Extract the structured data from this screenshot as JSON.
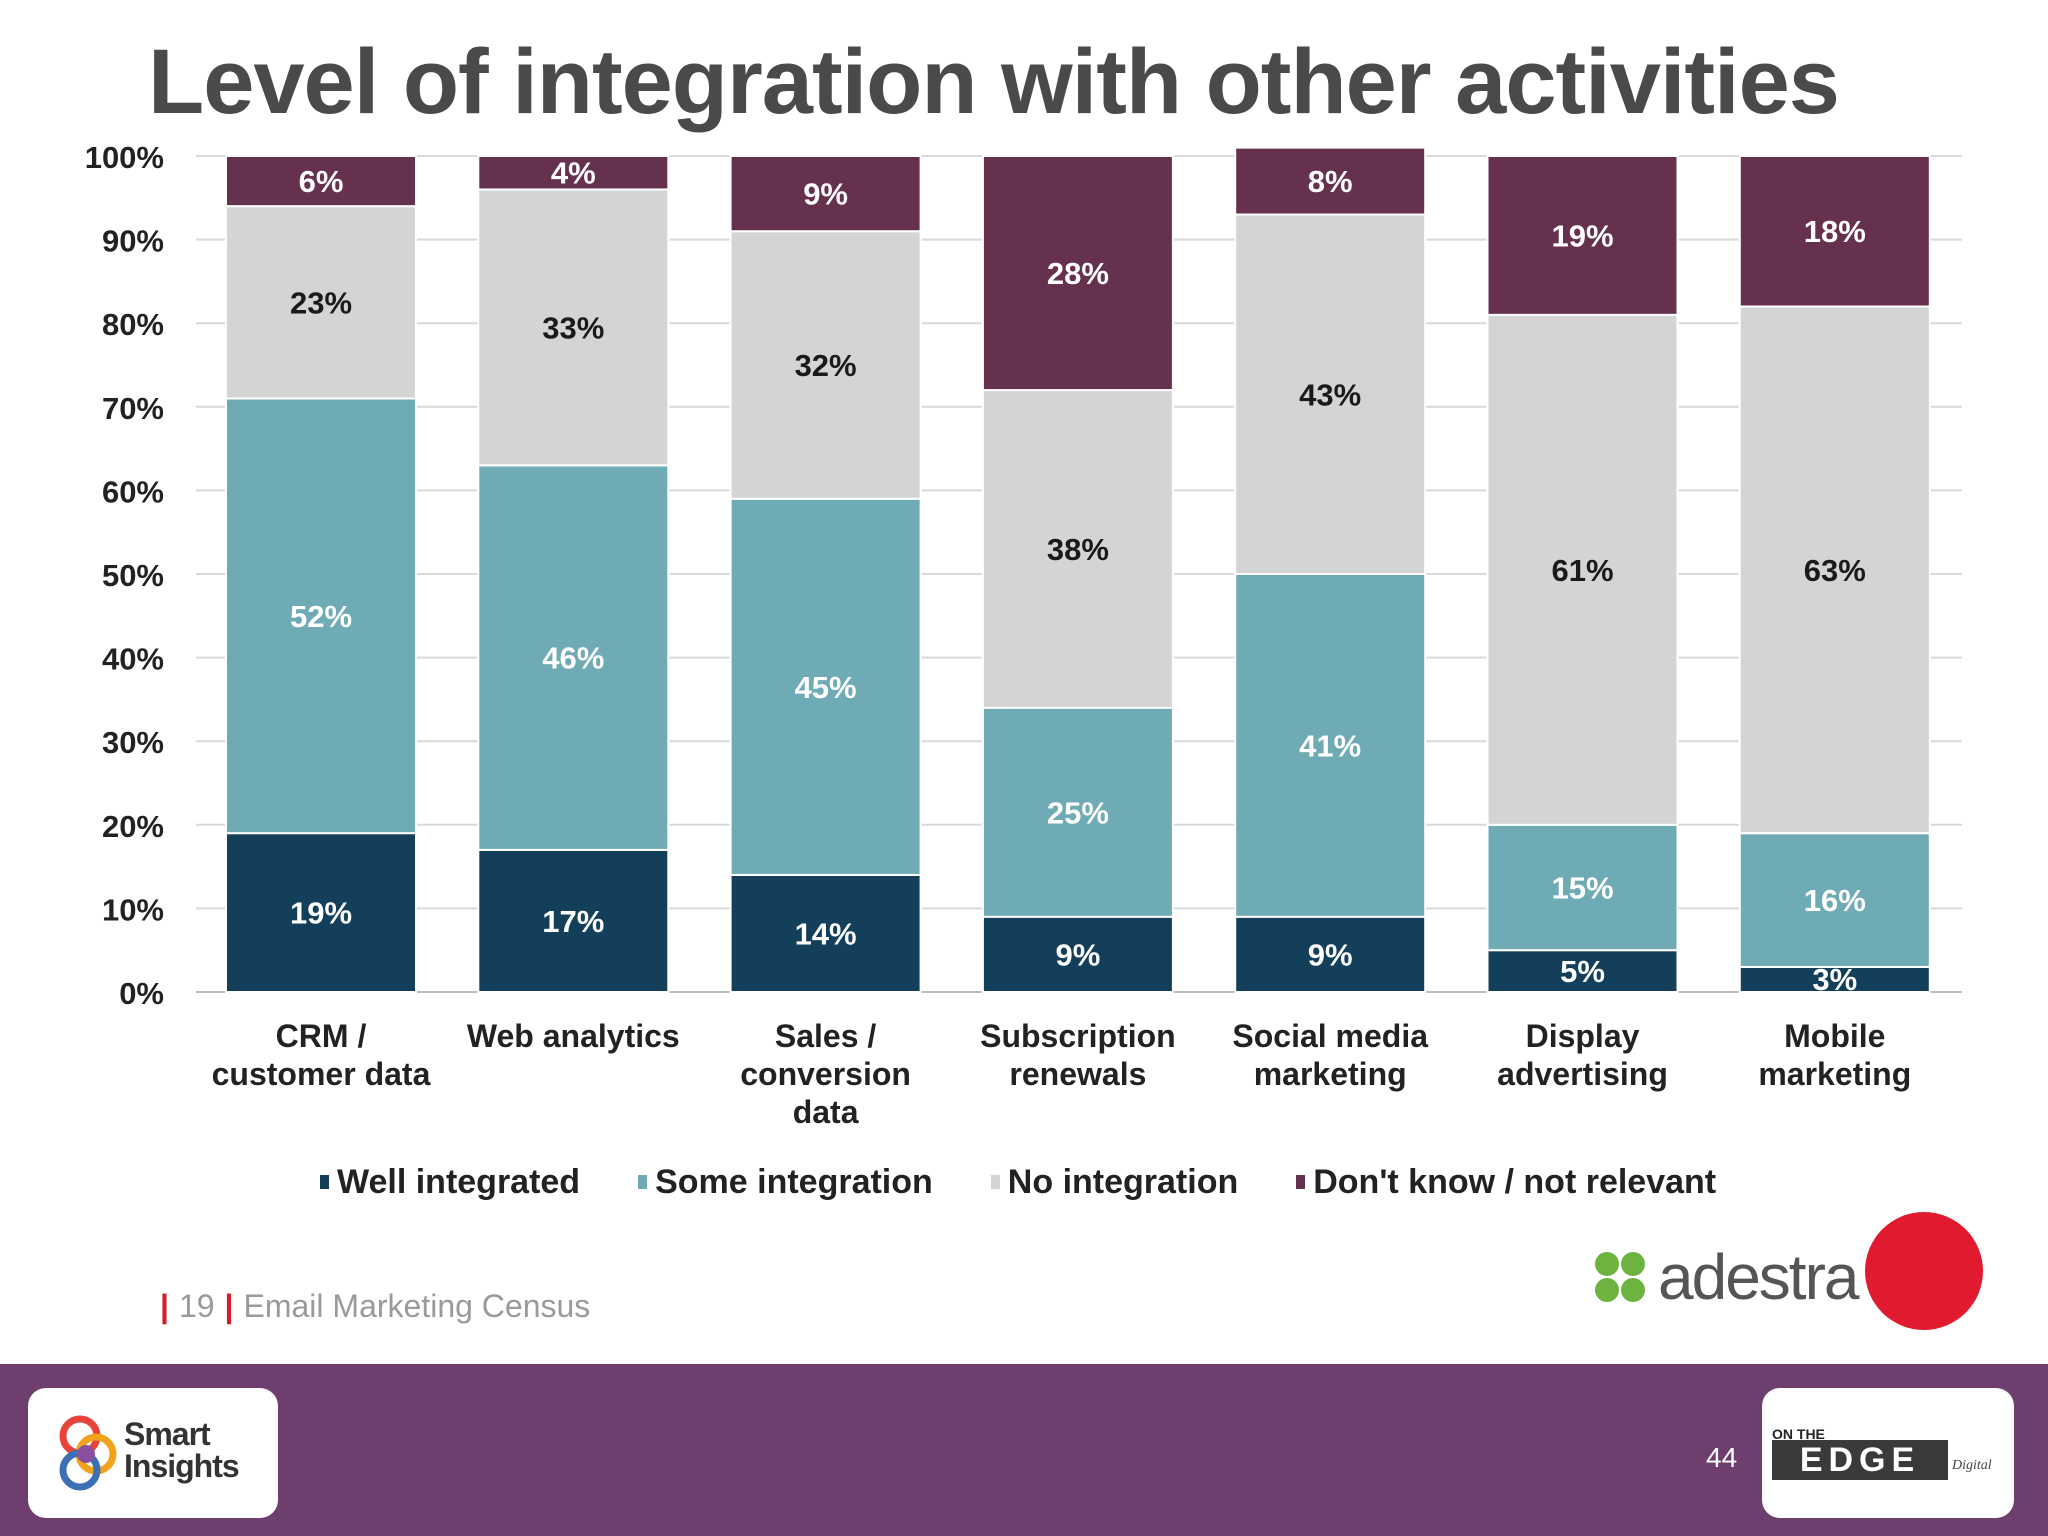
{
  "title": "Level of integration with other activities",
  "colors": {
    "well": "#143f5a",
    "some": "#6fabb4",
    "none": "#d4d4d4",
    "dontknow": "#66304f",
    "band": "#6e3f6e"
  },
  "chart_data": {
    "type": "bar",
    "stacked": true,
    "title": "Level of integration with other activities",
    "categories": [
      [
        "CRM /",
        "customer data"
      ],
      [
        "Web analytics"
      ],
      [
        "Sales /",
        "conversion",
        "data"
      ],
      [
        "Subscription",
        "renewals"
      ],
      [
        "Social media",
        "marketing"
      ],
      [
        "Display",
        "advertising"
      ],
      [
        "Mobile",
        "marketing"
      ]
    ],
    "series": [
      {
        "name": "Well integrated",
        "values": [
          19,
          17,
          14,
          9,
          9,
          5,
          3
        ]
      },
      {
        "name": "Some integration",
        "values": [
          52,
          46,
          45,
          25,
          41,
          15,
          16
        ]
      },
      {
        "name": "No integration",
        "values": [
          23,
          33,
          32,
          38,
          43,
          61,
          63
        ]
      },
      {
        "name": "Don't know / not relevant",
        "values": [
          6,
          4,
          9,
          28,
          8,
          19,
          18
        ]
      }
    ],
    "yticks": [
      "0%",
      "10%",
      "20%",
      "30%",
      "40%",
      "50%",
      "60%",
      "70%",
      "80%",
      "90%",
      "100%"
    ],
    "ylim": [
      0,
      100
    ],
    "grid": true,
    "legend": "bottom"
  },
  "footer": {
    "page": "19",
    "source": "Email Marketing Census",
    "brand": "adestra",
    "slide_number": "44"
  },
  "logos": {
    "smart_insights": [
      "Smart",
      "Insights"
    ],
    "edge_top": "ON THE",
    "edge_main": "EDGE",
    "edge_sub": "Digital"
  }
}
